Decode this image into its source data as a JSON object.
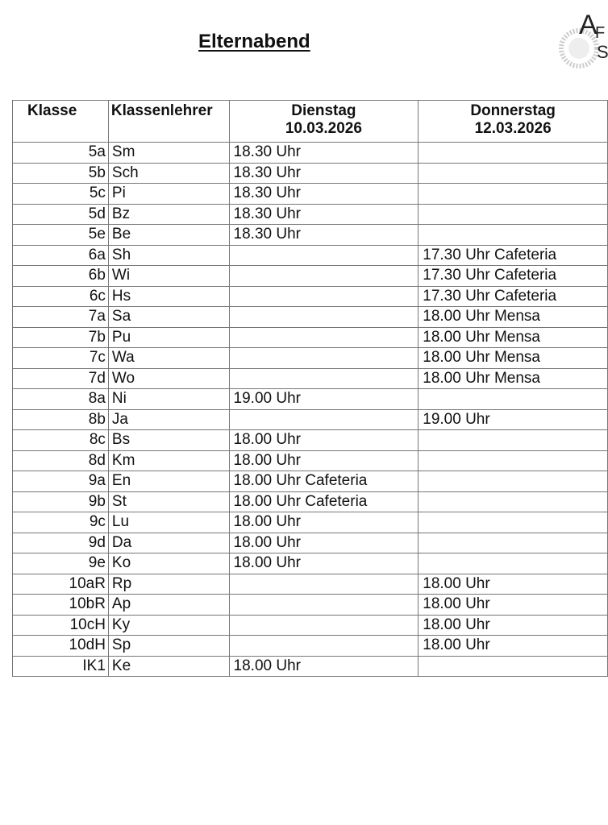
{
  "title": "Elternabend",
  "logo": {
    "text": "AFS"
  },
  "table": {
    "headers": {
      "klasse": "Klasse",
      "lehrer": "Klassenlehrer",
      "dienstag": "Dienstag",
      "dienstag_date": "10.03.2026",
      "donnerstag": "Donnerstag",
      "donnerstag_date": "12.03.2026"
    },
    "rows": [
      [
        "5a",
        "Sm",
        "18.30 Uhr",
        ""
      ],
      [
        "5b",
        "Sch",
        "18.30 Uhr",
        ""
      ],
      [
        "5c",
        "Pi",
        "18.30 Uhr",
        ""
      ],
      [
        "5d",
        "Bz",
        "18.30 Uhr",
        ""
      ],
      [
        "5e",
        "Be",
        "18.30 Uhr",
        ""
      ],
      [
        "6a",
        "Sh",
        "",
        "17.30 Uhr Cafeteria"
      ],
      [
        "6b",
        "Wi",
        "",
        "17.30 Uhr Cafeteria"
      ],
      [
        "6c",
        "Hs",
        "",
        "17.30 Uhr Cafeteria"
      ],
      [
        "7a",
        "Sa",
        "",
        "18.00 Uhr Mensa"
      ],
      [
        "7b",
        "Pu",
        "",
        "18.00 Uhr Mensa"
      ],
      [
        "7c",
        "Wa",
        "",
        "18.00 Uhr Mensa"
      ],
      [
        "7d",
        "Wo",
        "",
        "18.00 Uhr Mensa"
      ],
      [
        "8a",
        "Ni",
        "19.00 Uhr",
        ""
      ],
      [
        "8b",
        "Ja",
        "",
        "19.00 Uhr"
      ],
      [
        "8c",
        "Bs",
        "18.00 Uhr",
        ""
      ],
      [
        "8d",
        "Km",
        "18.00 Uhr",
        ""
      ],
      [
        "9a",
        "En",
        "18.00 Uhr Cafeteria",
        ""
      ],
      [
        "9b",
        "St",
        "18.00 Uhr Cafeteria",
        ""
      ],
      [
        "9c",
        "Lu",
        "18.00 Uhr",
        ""
      ],
      [
        "9d",
        "Da",
        "18.00 Uhr",
        ""
      ],
      [
        "9e",
        "Ko",
        "18.00 Uhr",
        ""
      ],
      [
        "10aR",
        "Rp",
        "",
        "18.00 Uhr"
      ],
      [
        "10bR",
        "Ap",
        "",
        "18.00 Uhr"
      ],
      [
        "10cH",
        "Ky",
        "",
        "18.00 Uhr"
      ],
      [
        "10dH",
        "Sp",
        "",
        "18.00 Uhr"
      ],
      [
        "IK1",
        "Ke",
        "18.00 Uhr",
        ""
      ]
    ]
  }
}
